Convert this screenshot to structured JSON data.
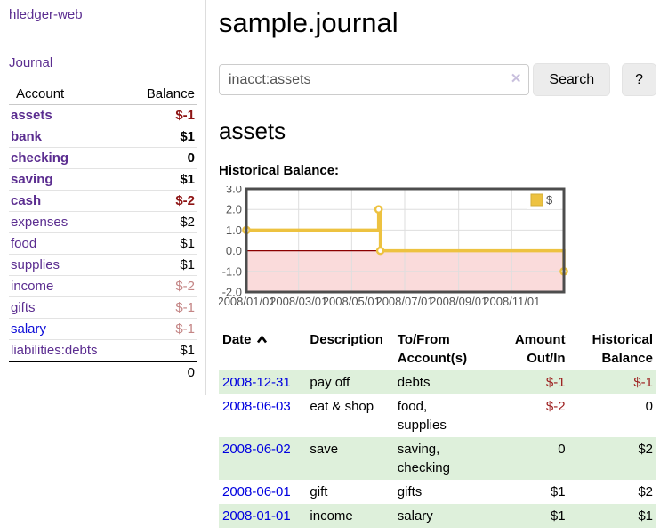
{
  "app": {
    "brand": "hledger-web",
    "nav_journal": "Journal"
  },
  "colors": {
    "accent_purple": "#5b2d90",
    "link_blue": "#0000e0",
    "negative_strong": "#8e1414",
    "negative_muted": "#c48585",
    "row_green": "#def0db",
    "series_gold": "#edc240"
  },
  "sidebar": {
    "accounts_header": {
      "account": "Account",
      "balance": "Balance"
    },
    "accounts": [
      {
        "name": "assets",
        "balance": "$-1",
        "level": 0,
        "bold": true,
        "balance_style": "negative"
      },
      {
        "name": "bank",
        "balance": "$1",
        "level": 1,
        "bold": true,
        "balance_style": "normal"
      },
      {
        "name": "checking",
        "balance": "0",
        "level": 2,
        "bold": true,
        "balance_style": "normal"
      },
      {
        "name": "saving",
        "balance": "$1",
        "level": 2,
        "bold": true,
        "balance_style": "normal"
      },
      {
        "name": "cash",
        "balance": "$-2",
        "level": 1,
        "bold": true,
        "balance_style": "negative"
      },
      {
        "name": "expenses",
        "balance": "$2",
        "level": 0,
        "bold": false,
        "balance_style": "normal"
      },
      {
        "name": "food",
        "balance": "$1",
        "level": 1,
        "bold": false,
        "balance_style": "normal"
      },
      {
        "name": "supplies",
        "balance": "$1",
        "level": 1,
        "bold": false,
        "balance_style": "normal"
      },
      {
        "name": "income",
        "balance": "$-2",
        "level": 0,
        "bold": false,
        "balance_style": "negative-muted"
      },
      {
        "name": "gifts",
        "balance": "$-1",
        "level": 1,
        "bold": false,
        "balance_style": "negative-muted"
      },
      {
        "name": "salary",
        "balance": "$-1",
        "level": 1,
        "bold": false,
        "balance_style": "negative-muted",
        "link_style": "blue"
      },
      {
        "name": "liabilities:debts",
        "balance": "$1",
        "level": 0,
        "bold": false,
        "balance_style": "normal"
      }
    ],
    "total": "0"
  },
  "header": {
    "title": "sample.journal"
  },
  "search": {
    "value": "inacct:assets",
    "clear_label": "✕",
    "button_label": "Search",
    "help_label": "?"
  },
  "account_page": {
    "title": "assets",
    "chart_title": "Historical Balance:"
  },
  "chart_data": {
    "type": "line",
    "step": true,
    "title": "Historical Balance:",
    "legend": {
      "label": "$",
      "position": "top-right"
    },
    "series": [
      {
        "name": "$",
        "color": "#edc240",
        "points": [
          {
            "date": "2008-01-01",
            "day": 0,
            "value": 1
          },
          {
            "date": "2008-06-01",
            "day": 152,
            "value": 2
          },
          {
            "date": "2008-06-03",
            "day": 154,
            "value": 0
          },
          {
            "date": "2008-12-31",
            "day": 365,
            "value": -1
          }
        ]
      }
    ],
    "x_ticks": [
      {
        "label": "2008/01/01",
        "day": 0
      },
      {
        "label": "2008/03/01",
        "day": 60
      },
      {
        "label": "2008/05/01",
        "day": 121
      },
      {
        "label": "2008/07/01",
        "day": 182
      },
      {
        "label": "2008/09/01",
        "day": 244
      },
      {
        "label": "2008/11/01",
        "day": 305
      }
    ],
    "x_max_day": 365,
    "y_ticks": [
      3.0,
      2.0,
      1.0,
      0.0,
      -1.0,
      -2.0
    ],
    "ylim": [
      -2,
      3
    ],
    "grid": true,
    "colors": {
      "grid": "#dedede",
      "border": "#4d4d4d",
      "zero_line": "#8b0000",
      "below_zero_fill": "#fadbdb",
      "marker_fill": "#ffffff",
      "axis_text": "#545454"
    }
  },
  "register": {
    "columns": [
      {
        "label": "Date",
        "align": "left",
        "sorted": "ascending"
      },
      {
        "label": "Description",
        "align": "left"
      },
      {
        "label": "To/From Account(s)",
        "align": "left"
      },
      {
        "label": "Amount Out/In",
        "align": "right"
      },
      {
        "label": "Historical Balance",
        "align": "right"
      }
    ],
    "rows": [
      {
        "date": "2008-12-31",
        "description": "pay off",
        "accounts": "debts",
        "amount": "$-1",
        "balance": "$-1",
        "amount_style": "negative",
        "balance_style": "negative",
        "shaded": true
      },
      {
        "date": "2008-06-03",
        "description": "eat & shop",
        "accounts": "food, supplies",
        "amount": "$-2",
        "balance": "0",
        "amount_style": "negative",
        "balance_style": "normal",
        "shaded": false
      },
      {
        "date": "2008-06-02",
        "description": "save",
        "accounts": "saving, checking",
        "amount": "0",
        "balance": "$2",
        "amount_style": "normal",
        "balance_style": "normal",
        "shaded": true
      },
      {
        "date": "2008-06-01",
        "description": "gift",
        "accounts": "gifts",
        "amount": "$1",
        "balance": "$2",
        "amount_style": "normal",
        "balance_style": "normal",
        "shaded": false
      },
      {
        "date": "2008-01-01",
        "description": "income",
        "accounts": "salary",
        "amount": "$1",
        "balance": "$1",
        "amount_style": "normal",
        "balance_style": "normal",
        "shaded": true
      }
    ]
  }
}
